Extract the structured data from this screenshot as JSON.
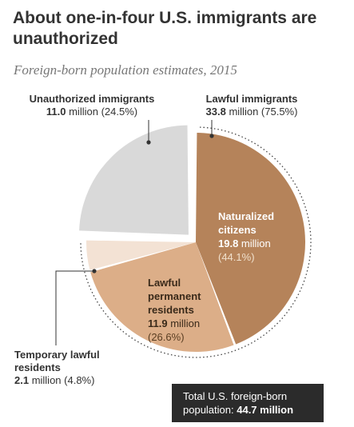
{
  "title": "About one-in-four U.S. immigrants are unauthorized",
  "subtitle": "Foreign-born population estimates, 2015",
  "labels": {
    "unauthorized": {
      "name": "Unauthorized immigrants",
      "value": "11.0",
      "unit": " million ",
      "pct": "(24.5%)"
    },
    "lawful": {
      "name": "Lawful immigrants",
      "value": "33.8",
      "unit": " million ",
      "pct": "(75.5%)"
    },
    "naturalized": {
      "name1": "Naturalized",
      "name2": "citizens",
      "value": "19.8",
      "unit": " million",
      "pct": "(44.1%)"
    },
    "permanent": {
      "name1": "Lawful",
      "name2": "permanent",
      "name3": "residents",
      "value": "11.9",
      "unit": " million",
      "pct": "(26.6%)"
    },
    "temporary": {
      "name1": "Temporary lawful",
      "name2": "residents",
      "value": "2.1",
      "unit": " million ",
      "pct": "(4.8%)"
    }
  },
  "total": {
    "line1": "Total U.S. foreign-born",
    "line2": "population: ",
    "value": "44.7 million"
  },
  "colors": {
    "naturalized": "#b5835a",
    "permanent": "#dcae88",
    "temporary": "#f3e2d4",
    "unauthorized": "#d9d9d9",
    "dotted": "#444444",
    "total_bg": "#2b2b2b"
  },
  "chart_data": {
    "type": "pie",
    "title": "About one-in-four U.S. immigrants are unauthorized",
    "subtitle": "Foreign-born population estimates, 2015",
    "unit": "million",
    "slices": [
      {
        "name": "Naturalized citizens",
        "value": 19.8,
        "percent": 44.1,
        "group": "Lawful immigrants"
      },
      {
        "name": "Lawful permanent residents",
        "value": 11.9,
        "percent": 26.6,
        "group": "Lawful immigrants"
      },
      {
        "name": "Temporary lawful residents",
        "value": 2.1,
        "percent": 4.8,
        "group": "Lawful immigrants"
      },
      {
        "name": "Unauthorized immigrants",
        "value": 11.0,
        "percent": 24.5,
        "exploded": true
      }
    ],
    "groups": [
      {
        "name": "Lawful immigrants",
        "value": 33.8,
        "percent": 75.5
      },
      {
        "name": "Unauthorized immigrants",
        "value": 11.0,
        "percent": 24.5
      }
    ],
    "total": 44.7
  }
}
